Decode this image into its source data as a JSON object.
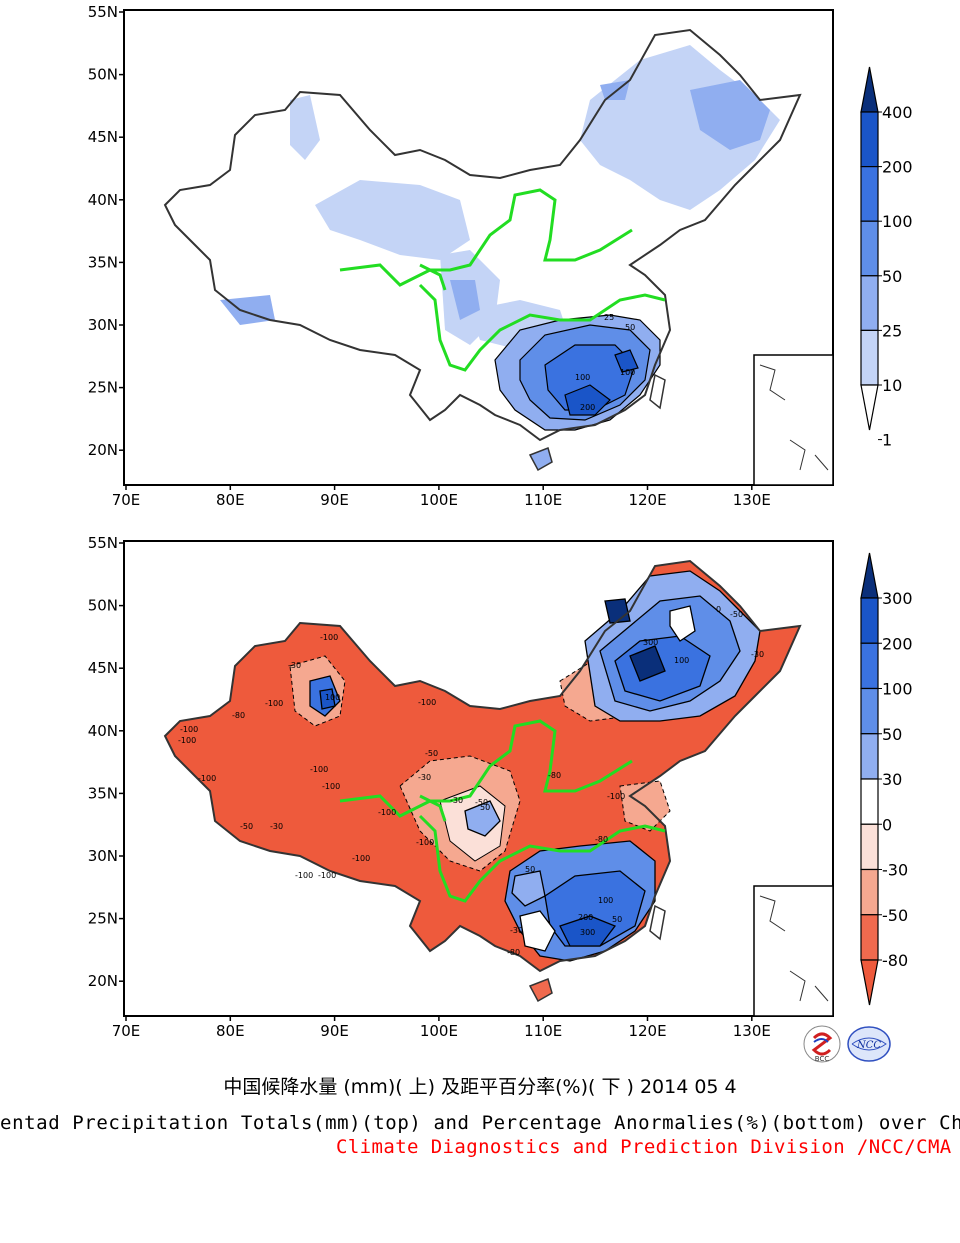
{
  "title_cn": "中国候降水量 (mm)( 上) 及距平百分率(%)( 下 ) 2014 05 4",
  "title_en": "Pentad Precipitation Totals(mm)(top) and Percentage Anormalies(%)(bottom) over China",
  "division": "Climate Diagnostics and Prediction Division /NCC/CMA",
  "lat_labels": [
    "55N",
    "50N",
    "45N",
    "40N",
    "35N",
    "30N",
    "25N",
    "20N"
  ],
  "lon_labels": [
    "70E",
    "80E",
    "90E",
    "100E",
    "110E",
    "120E",
    "130E"
  ],
  "colors": {
    "line_green": "#22dd22",
    "border": "#333333"
  },
  "maps": [
    {
      "id": "top",
      "colorbar": {
        "labels": [
          "400",
          "200",
          "100",
          "50",
          "25",
          "10",
          "1"
        ],
        "colors": [
          "#0a2f7a",
          "#1a55c8",
          "#3a72e0",
          "#5f8ee8",
          "#90aef0",
          "#c4d4f6",
          "#ffffff"
        ]
      },
      "contour_labels": [
        "25",
        "50",
        "100",
        "100",
        "200"
      ]
    },
    {
      "id": "bottom",
      "colorbar": {
        "labels": [
          "300",
          "200",
          "100",
          "50",
          "30",
          "0",
          "-30",
          "-50",
          "-80"
        ],
        "colors": [
          "#0a2f7a",
          "#1a55c8",
          "#3a72e0",
          "#5f8ee8",
          "#90aef0",
          "#ffffff",
          "#fbe0d8",
          "#f5a890",
          "#f06a4e",
          "#ee5a3c"
        ]
      },
      "contour_labels": [
        "-100",
        "-100",
        "-100",
        "-80",
        "-30",
        "-100",
        "-100",
        "-100",
        "-100",
        "-100",
        "-100",
        "-50",
        "-30",
        "-100",
        "-100",
        "-100",
        "-50",
        "-30",
        "-80",
        "-30",
        "-50",
        "-80",
        "100",
        "300",
        "100",
        "0",
        "-50",
        "-30",
        "50",
        "50",
        "100",
        "200",
        "300",
        "-30",
        "-80",
        "50",
        "-100",
        "-100"
      ]
    }
  ],
  "logos": {
    "left": "BCC",
    "right": "NCC"
  }
}
